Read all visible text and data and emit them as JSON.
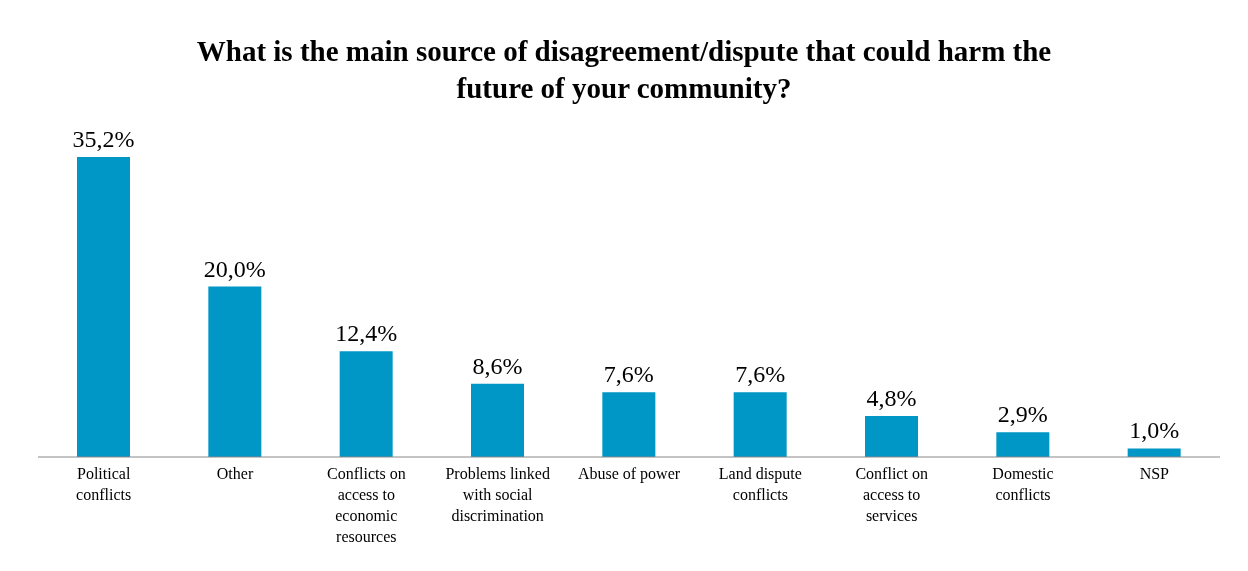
{
  "chart_data": {
    "type": "bar",
    "title": "What is the main source of disagreement/dispute that could harm the future of your community?",
    "categories": [
      "Political conflicts",
      "Other",
      "Conflicts on access to economic resources",
      "Problems linked with social discrimination",
      "Abuse of power",
      "Land dispute conflicts",
      "Conflict on access to services",
      "Domestic conflicts",
      "NSP"
    ],
    "values": [
      35.2,
      20.0,
      12.4,
      8.6,
      7.6,
      7.6,
      4.8,
      2.9,
      1.0
    ],
    "value_labels": [
      "35,2%",
      "20,0%",
      "12,4%",
      "8,6%",
      "7,6%",
      "7,6%",
      "4,8%",
      "2,9%",
      "1,0%"
    ],
    "color": "#0096c6"
  }
}
